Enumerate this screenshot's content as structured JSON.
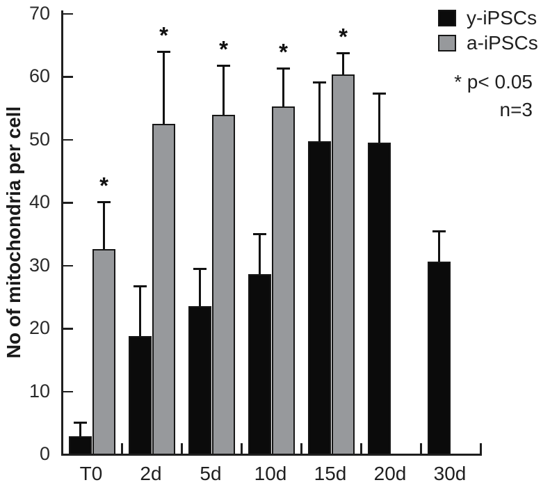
{
  "chart_data": {
    "type": "bar",
    "title": "",
    "xlabel": "",
    "ylabel": "No of mitochondria per cell",
    "ylim": [
      0,
      70
    ],
    "yticks": [
      0,
      10,
      20,
      30,
      40,
      50,
      60,
      70
    ],
    "grid": false,
    "legend_position": "top-right",
    "categories": [
      "T0",
      "2d",
      "5d",
      "10d",
      "15d",
      "20d",
      "30d"
    ],
    "series": [
      {
        "name": "y-iPSCs",
        "color": "#0b0b0b",
        "values": [
          2.8,
          18.7,
          23.4,
          28.5,
          49.6,
          49.4,
          30.5
        ],
        "error_plus": [
          2.3,
          8.0,
          6.1,
          6.5,
          9.5,
          8.0,
          5.0
        ],
        "significant": [
          false,
          false,
          false,
          false,
          false,
          false,
          false
        ]
      },
      {
        "name": "a-iPSCs",
        "color": "#97999c",
        "values": [
          32.5,
          52.4,
          53.8,
          55.1,
          60.2,
          null,
          null
        ],
        "error_plus": [
          7.6,
          11.6,
          8.0,
          6.2,
          3.6,
          null,
          null
        ],
        "significant": [
          true,
          true,
          true,
          true,
          true,
          false,
          false
        ]
      }
    ],
    "annotations": {
      "sig_marker": "*",
      "significance_note": "* p< 0.05",
      "sample_note": "n=3"
    }
  }
}
